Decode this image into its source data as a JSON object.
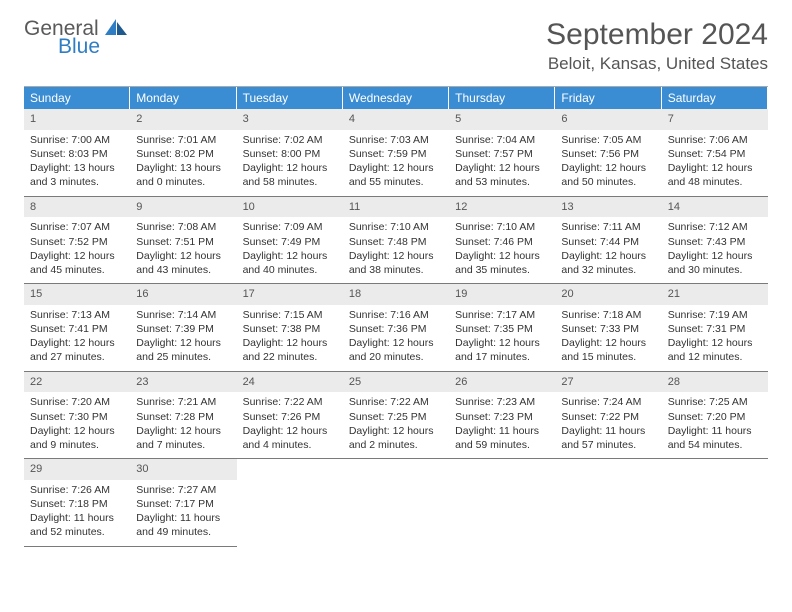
{
  "logo": {
    "general": "General",
    "blue": "Blue"
  },
  "title": "September 2024",
  "location": "Beloit, Kansas, United States",
  "colors": {
    "header_bg": "#3a8cd3",
    "header_text": "#ffffff",
    "daynum_bg": "#ebebeb",
    "text": "#333333",
    "rule": "#7a7a7a"
  },
  "weekdays": [
    "Sunday",
    "Monday",
    "Tuesday",
    "Wednesday",
    "Thursday",
    "Friday",
    "Saturday"
  ],
  "weeks": [
    [
      {
        "n": "1",
        "sr": "Sunrise: 7:00 AM",
        "ss": "Sunset: 8:03 PM",
        "d1": "Daylight: 13 hours",
        "d2": "and 3 minutes."
      },
      {
        "n": "2",
        "sr": "Sunrise: 7:01 AM",
        "ss": "Sunset: 8:02 PM",
        "d1": "Daylight: 13 hours",
        "d2": "and 0 minutes."
      },
      {
        "n": "3",
        "sr": "Sunrise: 7:02 AM",
        "ss": "Sunset: 8:00 PM",
        "d1": "Daylight: 12 hours",
        "d2": "and 58 minutes."
      },
      {
        "n": "4",
        "sr": "Sunrise: 7:03 AM",
        "ss": "Sunset: 7:59 PM",
        "d1": "Daylight: 12 hours",
        "d2": "and 55 minutes."
      },
      {
        "n": "5",
        "sr": "Sunrise: 7:04 AM",
        "ss": "Sunset: 7:57 PM",
        "d1": "Daylight: 12 hours",
        "d2": "and 53 minutes."
      },
      {
        "n": "6",
        "sr": "Sunrise: 7:05 AM",
        "ss": "Sunset: 7:56 PM",
        "d1": "Daylight: 12 hours",
        "d2": "and 50 minutes."
      },
      {
        "n": "7",
        "sr": "Sunrise: 7:06 AM",
        "ss": "Sunset: 7:54 PM",
        "d1": "Daylight: 12 hours",
        "d2": "and 48 minutes."
      }
    ],
    [
      {
        "n": "8",
        "sr": "Sunrise: 7:07 AM",
        "ss": "Sunset: 7:52 PM",
        "d1": "Daylight: 12 hours",
        "d2": "and 45 minutes."
      },
      {
        "n": "9",
        "sr": "Sunrise: 7:08 AM",
        "ss": "Sunset: 7:51 PM",
        "d1": "Daylight: 12 hours",
        "d2": "and 43 minutes."
      },
      {
        "n": "10",
        "sr": "Sunrise: 7:09 AM",
        "ss": "Sunset: 7:49 PM",
        "d1": "Daylight: 12 hours",
        "d2": "and 40 minutes."
      },
      {
        "n": "11",
        "sr": "Sunrise: 7:10 AM",
        "ss": "Sunset: 7:48 PM",
        "d1": "Daylight: 12 hours",
        "d2": "and 38 minutes."
      },
      {
        "n": "12",
        "sr": "Sunrise: 7:10 AM",
        "ss": "Sunset: 7:46 PM",
        "d1": "Daylight: 12 hours",
        "d2": "and 35 minutes."
      },
      {
        "n": "13",
        "sr": "Sunrise: 7:11 AM",
        "ss": "Sunset: 7:44 PM",
        "d1": "Daylight: 12 hours",
        "d2": "and 32 minutes."
      },
      {
        "n": "14",
        "sr": "Sunrise: 7:12 AM",
        "ss": "Sunset: 7:43 PM",
        "d1": "Daylight: 12 hours",
        "d2": "and 30 minutes."
      }
    ],
    [
      {
        "n": "15",
        "sr": "Sunrise: 7:13 AM",
        "ss": "Sunset: 7:41 PM",
        "d1": "Daylight: 12 hours",
        "d2": "and 27 minutes."
      },
      {
        "n": "16",
        "sr": "Sunrise: 7:14 AM",
        "ss": "Sunset: 7:39 PM",
        "d1": "Daylight: 12 hours",
        "d2": "and 25 minutes."
      },
      {
        "n": "17",
        "sr": "Sunrise: 7:15 AM",
        "ss": "Sunset: 7:38 PM",
        "d1": "Daylight: 12 hours",
        "d2": "and 22 minutes."
      },
      {
        "n": "18",
        "sr": "Sunrise: 7:16 AM",
        "ss": "Sunset: 7:36 PM",
        "d1": "Daylight: 12 hours",
        "d2": "and 20 minutes."
      },
      {
        "n": "19",
        "sr": "Sunrise: 7:17 AM",
        "ss": "Sunset: 7:35 PM",
        "d1": "Daylight: 12 hours",
        "d2": "and 17 minutes."
      },
      {
        "n": "20",
        "sr": "Sunrise: 7:18 AM",
        "ss": "Sunset: 7:33 PM",
        "d1": "Daylight: 12 hours",
        "d2": "and 15 minutes."
      },
      {
        "n": "21",
        "sr": "Sunrise: 7:19 AM",
        "ss": "Sunset: 7:31 PM",
        "d1": "Daylight: 12 hours",
        "d2": "and 12 minutes."
      }
    ],
    [
      {
        "n": "22",
        "sr": "Sunrise: 7:20 AM",
        "ss": "Sunset: 7:30 PM",
        "d1": "Daylight: 12 hours",
        "d2": "and 9 minutes."
      },
      {
        "n": "23",
        "sr": "Sunrise: 7:21 AM",
        "ss": "Sunset: 7:28 PM",
        "d1": "Daylight: 12 hours",
        "d2": "and 7 minutes."
      },
      {
        "n": "24",
        "sr": "Sunrise: 7:22 AM",
        "ss": "Sunset: 7:26 PM",
        "d1": "Daylight: 12 hours",
        "d2": "and 4 minutes."
      },
      {
        "n": "25",
        "sr": "Sunrise: 7:22 AM",
        "ss": "Sunset: 7:25 PM",
        "d1": "Daylight: 12 hours",
        "d2": "and 2 minutes."
      },
      {
        "n": "26",
        "sr": "Sunrise: 7:23 AM",
        "ss": "Sunset: 7:23 PM",
        "d1": "Daylight: 11 hours",
        "d2": "and 59 minutes."
      },
      {
        "n": "27",
        "sr": "Sunrise: 7:24 AM",
        "ss": "Sunset: 7:22 PM",
        "d1": "Daylight: 11 hours",
        "d2": "and 57 minutes."
      },
      {
        "n": "28",
        "sr": "Sunrise: 7:25 AM",
        "ss": "Sunset: 7:20 PM",
        "d1": "Daylight: 11 hours",
        "d2": "and 54 minutes."
      }
    ],
    [
      {
        "n": "29",
        "sr": "Sunrise: 7:26 AM",
        "ss": "Sunset: 7:18 PM",
        "d1": "Daylight: 11 hours",
        "d2": "and 52 minutes."
      },
      {
        "n": "30",
        "sr": "Sunrise: 7:27 AM",
        "ss": "Sunset: 7:17 PM",
        "d1": "Daylight: 11 hours",
        "d2": "and 49 minutes."
      },
      null,
      null,
      null,
      null,
      null
    ]
  ]
}
